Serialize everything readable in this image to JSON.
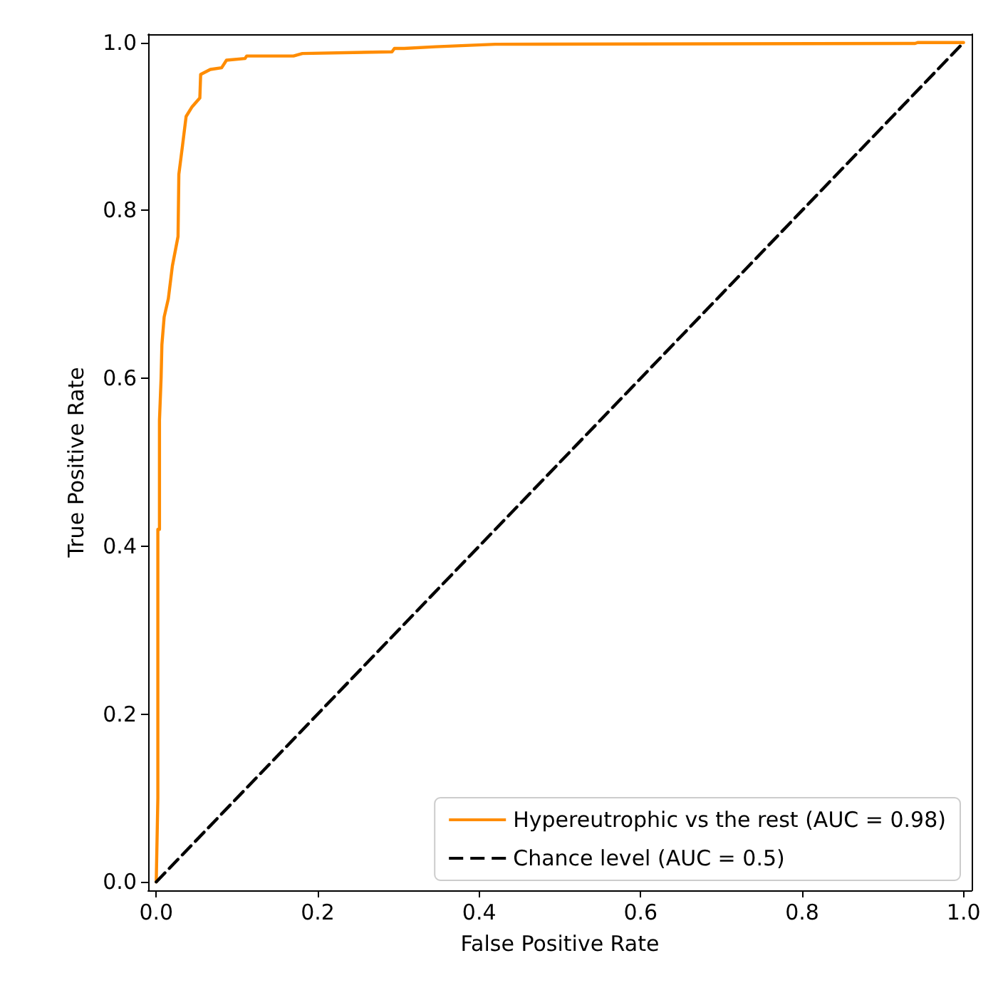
{
  "chart_data": {
    "type": "line",
    "xlabel": "False Positive Rate",
    "ylabel": "True Positive Rate",
    "xlim": [
      -0.01,
      1.01
    ],
    "ylim": [
      -0.01,
      1.01
    ],
    "xticks": [
      {
        "value": 0,
        "label": "0.0"
      },
      {
        "value": 0.2,
        "label": "0.2"
      },
      {
        "value": 0.4,
        "label": "0.4"
      },
      {
        "value": 0.6,
        "label": "0.6"
      },
      {
        "value": 0.8,
        "label": "0.8"
      },
      {
        "value": 1,
        "label": "1.0"
      }
    ],
    "yticks": [
      {
        "value": 0,
        "label": "0.0"
      },
      {
        "value": 0.2,
        "label": "0.2"
      },
      {
        "value": 0.4,
        "label": "0.4"
      },
      {
        "value": 0.6,
        "label": "0.6"
      },
      {
        "value": 0.8,
        "label": "0.8"
      },
      {
        "value": 1,
        "label": "1.0"
      }
    ],
    "grid": false,
    "legend": "bottom right",
    "marker": "none",
    "series": [
      {
        "name": "Hypereutrophic vs the rest (AUC = 0.98)",
        "color": "#ff8c00",
        "line_style": "solid",
        "x": [
          0,
          0.002,
          0.002,
          0.004,
          0.004,
          0.006,
          0.007,
          0.0098,
          0.015,
          0.02,
          0.027,
          0.028,
          0.0325,
          0.037,
          0.044,
          0.054,
          0.055,
          0.067,
          0.081,
          0.087,
          0.11,
          0.112,
          0.17,
          0.181,
          0.292,
          0.295,
          0.307,
          0.346,
          0.42,
          0.94,
          0.943,
          1
        ],
        "values": [
          0,
          0.1,
          0.42,
          0.42,
          0.55,
          0.6,
          0.64,
          0.673,
          0.695,
          0.734,
          0.769,
          0.843,
          0.877,
          0.912,
          0.923,
          0.934,
          0.962,
          0.968,
          0.97,
          0.979,
          0.981,
          0.984,
          0.984,
          0.987,
          0.989,
          0.993,
          0.993,
          0.995,
          0.998,
          0.999,
          1,
          1
        ]
      },
      {
        "name": "Chance level (AUC = 0.5)",
        "color": "#000000",
        "line_style": "dashed",
        "x": [
          0,
          1
        ],
        "values": [
          0,
          1
        ]
      }
    ]
  }
}
